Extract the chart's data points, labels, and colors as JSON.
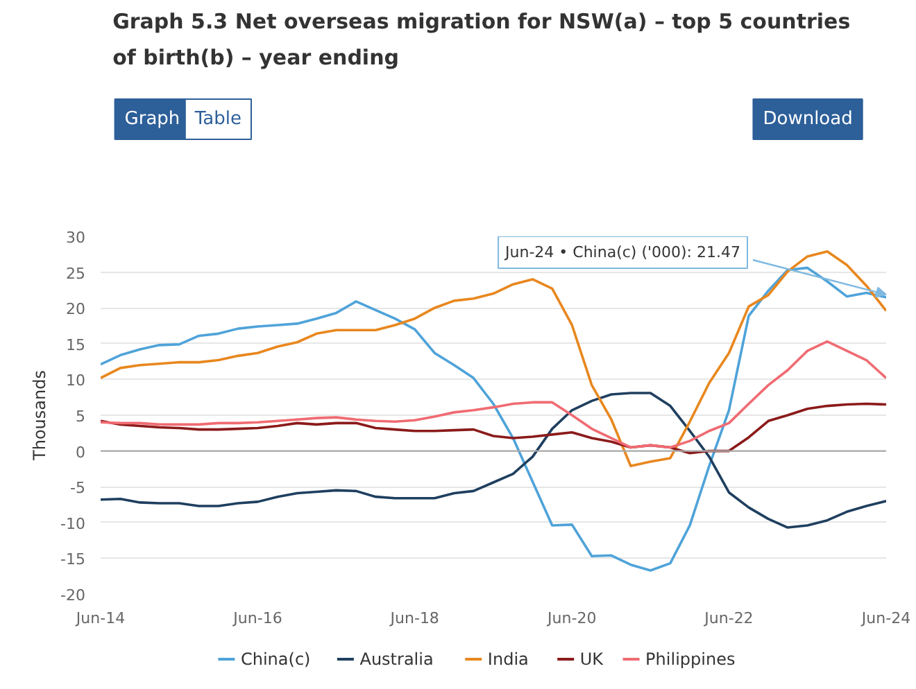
{
  "chart_data": {
    "type": "line",
    "title": "Graph 5.3 Net overseas migration for NSW(a) – top 5 countries of birth(b) – year ending",
    "ylabel": "Thousands",
    "x": [
      "2014-06",
      "2014-09",
      "2014-12",
      "2015-03",
      "2015-06",
      "2015-09",
      "2015-12",
      "2016-03",
      "2016-06",
      "2016-09",
      "2016-12",
      "2017-03",
      "2017-06",
      "2017-09",
      "2017-12",
      "2018-03",
      "2018-06",
      "2018-09",
      "2018-12",
      "2019-03",
      "2019-06",
      "2019-09",
      "2019-12",
      "2020-03",
      "2020-06",
      "2020-09",
      "2020-12",
      "2021-03",
      "2021-06",
      "2021-09",
      "2021-12",
      "2022-03",
      "2022-06",
      "2022-09",
      "2022-12",
      "2023-03",
      "2023-06",
      "2023-09",
      "2023-12",
      "2024-03",
      "2024-06"
    ],
    "series": [
      {
        "name": "China(c)",
        "color": "#4fa3d9",
        "values": [
          12.1,
          13.4,
          14.2,
          14.8,
          14.9,
          16.1,
          16.4,
          17.1,
          17.4,
          17.6,
          17.8,
          18.5,
          19.3,
          20.9,
          19.7,
          18.5,
          17.0,
          13.7,
          12.0,
          10.2,
          6.6,
          1.8,
          -4.3,
          -10.4,
          -10.3,
          -14.7,
          -14.6,
          -15.9,
          -16.7,
          -15.7,
          -10.4,
          -2.1,
          5.7,
          18.9,
          22.4,
          25.3,
          25.6,
          23.7,
          21.6,
          22.1,
          21.47
        ]
      },
      {
        "name": "Australia",
        "color": "#1f3f5f",
        "values": [
          -6.8,
          -6.7,
          -7.2,
          -7.3,
          -7.3,
          -7.7,
          -7.7,
          -7.3,
          -7.1,
          -6.4,
          -5.9,
          -5.7,
          -5.5,
          -5.6,
          -6.4,
          -6.6,
          -6.6,
          -6.6,
          -5.9,
          -5.6,
          -4.4,
          -3.2,
          -0.8,
          3.1,
          5.7,
          7.0,
          7.9,
          8.1,
          8.1,
          6.3,
          2.8,
          -0.8,
          -5.8,
          -7.9,
          -9.5,
          -10.7,
          -10.4,
          -9.7,
          -8.5,
          -7.7,
          -7.0
        ]
      },
      {
        "name": "India",
        "color": "#e8871e",
        "values": [
          10.2,
          11.6,
          12.0,
          12.2,
          12.4,
          12.4,
          12.7,
          13.3,
          13.7,
          14.6,
          15.2,
          16.4,
          16.9,
          16.9,
          16.9,
          17.6,
          18.5,
          20.0,
          21.0,
          21.3,
          22.0,
          23.3,
          24.0,
          22.7,
          17.6,
          9.2,
          4.4,
          -2.1,
          -1.5,
          -1.0,
          4.1,
          9.5,
          13.7,
          20.2,
          21.8,
          25.1,
          27.2,
          27.9,
          26.0,
          23.1,
          19.6
        ]
      },
      {
        "name": "UK",
        "color": "#8b1a1a",
        "values": [
          4.2,
          3.7,
          3.5,
          3.3,
          3.2,
          3.0,
          3.0,
          3.1,
          3.2,
          3.5,
          3.9,
          3.7,
          3.9,
          3.9,
          3.2,
          3.0,
          2.8,
          2.8,
          2.9,
          3.0,
          2.1,
          1.8,
          2.0,
          2.3,
          2.6,
          1.8,
          1.3,
          0.5,
          0.8,
          0.5,
          -0.3,
          0.0,
          0.0,
          1.9,
          4.2,
          5.0,
          5.9,
          6.3,
          6.5,
          6.6,
          6.5
        ]
      },
      {
        "name": "Philippines",
        "color": "#f06b72",
        "values": [
          4.0,
          3.9,
          3.9,
          3.7,
          3.7,
          3.7,
          3.9,
          3.9,
          4.0,
          4.2,
          4.4,
          4.6,
          4.7,
          4.4,
          4.2,
          4.1,
          4.3,
          4.8,
          5.4,
          5.7,
          6.1,
          6.6,
          6.8,
          6.8,
          5.0,
          3.1,
          1.8,
          0.5,
          0.8,
          0.5,
          1.4,
          2.8,
          3.9,
          6.6,
          9.2,
          11.3,
          14.0,
          15.3,
          14.0,
          12.7,
          10.2
        ]
      }
    ],
    "xlim": [
      "2014-06",
      "2024-06"
    ],
    "xticks": [
      {
        "value": "2014-06",
        "label": "Jun-14"
      },
      {
        "value": "2016-06",
        "label": "Jun-16"
      },
      {
        "value": "2018-06",
        "label": "Jun-18"
      },
      {
        "value": "2020-06",
        "label": "Jun-20"
      },
      {
        "value": "2022-06",
        "label": "Jun-22"
      },
      {
        "value": "2024-06",
        "label": "Jun-24"
      }
    ],
    "ylim": [
      -20,
      30
    ],
    "yticks": [
      -20,
      -15,
      -10,
      -5,
      0,
      5,
      10,
      15,
      20,
      25,
      30
    ],
    "ref_lines": [
      {
        "axis": "y",
        "value": 0,
        "color": "#aaaaaa"
      }
    ],
    "grid": "y",
    "legend": "bottom",
    "line_style": "solid",
    "annotations": [
      "Graph",
      "Table",
      "Download",
      {
        "text": "Jun-24 • China(c) ('000): 21.47",
        "x": "2024-06",
        "y": 21.47
      }
    ]
  }
}
